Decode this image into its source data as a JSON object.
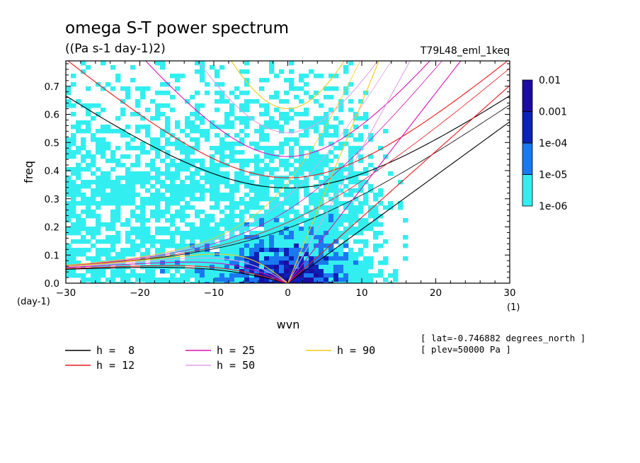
{
  "title": "omega S-T power spectrum",
  "units": "((Pa s-1 day-1)2)",
  "experiment": "T79L48_eml_1keq",
  "info": {
    "lat": "[ lat=-0.746882 degrees_north ]",
    "plev": "[ plev=50000 Pa ]"
  },
  "chart_data": {
    "type": "heatmap",
    "xlabel": "wvn",
    "ylabel": "freq",
    "x_unit_label": "(1)",
    "y_unit_label": "(day-1)",
    "xlim": [
      -30,
      30
    ],
    "ylim": [
      0,
      0.79
    ],
    "xticks": [
      -30,
      -20,
      -10,
      0,
      10,
      20,
      30
    ],
    "yticks": [
      0.0,
      0.1,
      0.2,
      0.3,
      0.4,
      0.5,
      0.6,
      0.7
    ],
    "colorbar": {
      "levels": [
        "1e-06",
        "1e-05",
        "1e-04",
        "0.001",
        "0.01"
      ],
      "colors": [
        "#33eef0",
        "#1a78f0",
        "#0a22b8",
        "#1c0ca0"
      ]
    },
    "dispersion_curves": [
      {
        "label": "h =  8",
        "h": 8,
        "color": "#000000"
      },
      {
        "label": "h = 12",
        "h": 12,
        "color": "#e8181c"
      },
      {
        "label": "h = 25",
        "h": 25,
        "color": "#d612b8"
      },
      {
        "label": "h = 50",
        "h": 50,
        "color": "#e2a0e6"
      },
      {
        "label": "h = 90",
        "h": 90,
        "color": "#f0cc14"
      }
    ]
  }
}
